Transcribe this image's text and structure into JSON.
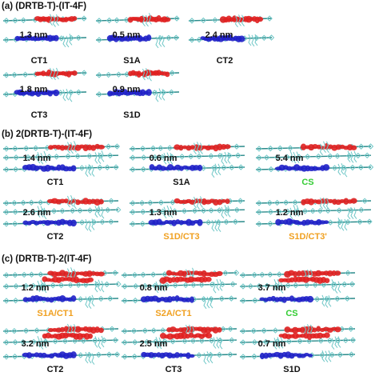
{
  "sections": [
    {
      "title": "(a) (DRTB-T)-(IT-4F)",
      "panels": [
        {
          "distance": "1.3 nm",
          "state": "CT1",
          "state_color": "#111111"
        },
        {
          "distance": "0.5 nm",
          "state": "S1A",
          "state_color": "#111111"
        },
        {
          "distance": "2.4 nm",
          "state": "CT2",
          "state_color": "#111111"
        },
        {
          "distance": "1.8 nm",
          "state": "CT3",
          "state_color": "#111111"
        },
        {
          "distance": "0.9 nm",
          "state": "S1D",
          "state_color": "#111111"
        }
      ]
    },
    {
      "title": "(b) 2(DRTB-T)-(IT-4F)",
      "panels": [
        {
          "distance": "1.4 nm",
          "state": "CT1",
          "state_color": "#111111"
        },
        {
          "distance": "0.6 nm",
          "state": "S1A",
          "state_color": "#111111"
        },
        {
          "distance": "5.4 nm",
          "state": "CS",
          "state_color": "#33cc33"
        },
        {
          "distance": "2.6 nm",
          "state": "CT2",
          "state_color": "#111111"
        },
        {
          "distance": "1.3 nm",
          "state": "S1D/CT3",
          "state_color": "#f0a020"
        },
        {
          "distance": "1.2 nm",
          "state": "S1D/CT3'",
          "state_color": "#f0a020"
        }
      ]
    },
    {
      "title": "(c) (DRTB-T)-2(IT-4F)",
      "panels": [
        {
          "distance": "1.2 nm",
          "state": "S1A/CT1",
          "state_color": "#f0a020"
        },
        {
          "distance": "0.8 nm",
          "state": "S2A/CT1",
          "state_color": "#f0a020"
        },
        {
          "distance": "3.7 nm",
          "state": "CS",
          "state_color": "#33cc33"
        },
        {
          "distance": "3.2 nm",
          "state": "CT2",
          "state_color": "#111111"
        },
        {
          "distance": "2.5 nm",
          "state": "CT3",
          "state_color": "#111111"
        },
        {
          "distance": "0.7 nm",
          "state": "S1D",
          "state_color": "#111111"
        }
      ]
    }
  ],
  "colors": {
    "hole_density": "#e02020",
    "electron_density": "#2020c8",
    "molecule_backbone": "#2a8a8a",
    "molecule_atoms": "#6fc7c7"
  }
}
